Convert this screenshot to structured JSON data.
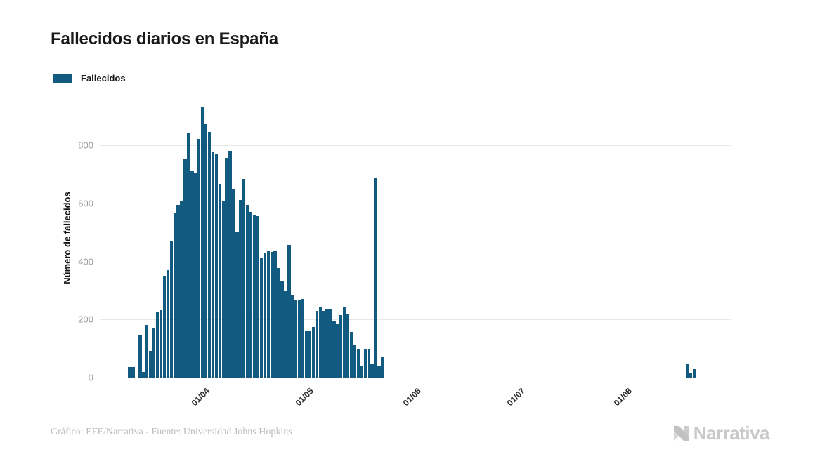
{
  "title": "Fallecidos diarios en España",
  "legend": {
    "label": "Fallecidos",
    "color": "#135a80"
  },
  "footer": {
    "credit": "Gráfico: EFE/Narrativa - Fuente: Universidad Johns Hopkins"
  },
  "logo": {
    "text": "Narrativa"
  },
  "colors": {
    "bar": "#135a80",
    "grid": "#e8e8e8",
    "axis_line": "#d9d9d9",
    "tick_label": "#9b9b9b",
    "x_tick_label": "#2b2b2b",
    "title": "#191919",
    "footer": "#bdbdbd",
    "logo": "#c9c9c9"
  },
  "chart_data": {
    "type": "bar",
    "title": "Fallecidos diarios en España",
    "xlabel": "",
    "ylabel": "Número de fallecidos",
    "ylim": [
      0,
      962
    ],
    "yticks": [
      0,
      200,
      400,
      600,
      800
    ],
    "grid": true,
    "legend_position": "top-left",
    "x_domain": [
      "2020-03-04",
      "2020-09-02"
    ],
    "xticks": [
      {
        "date": "2020-04-01",
        "label": "01/04"
      },
      {
        "date": "2020-05-01",
        "label": "01/05"
      },
      {
        "date": "2020-06-01",
        "label": "01/06"
      },
      {
        "date": "2020-07-01",
        "label": "01/07"
      },
      {
        "date": "2020-08-01",
        "label": "01/08"
      }
    ],
    "series": [
      {
        "name": "Fallecidos",
        "color": "#135a80",
        "dates": [
          "2020-03-12",
          "2020-03-13",
          "2020-03-14",
          "2020-03-15",
          "2020-03-16",
          "2020-03-17",
          "2020-03-18",
          "2020-03-19",
          "2020-03-20",
          "2020-03-21",
          "2020-03-22",
          "2020-03-23",
          "2020-03-24",
          "2020-03-25",
          "2020-03-26",
          "2020-03-27",
          "2020-03-28",
          "2020-03-29",
          "2020-03-30",
          "2020-03-31",
          "2020-04-01",
          "2020-04-02",
          "2020-04-03",
          "2020-04-04",
          "2020-04-05",
          "2020-04-06",
          "2020-04-07",
          "2020-04-08",
          "2020-04-09",
          "2020-04-10",
          "2020-04-11",
          "2020-04-12",
          "2020-04-13",
          "2020-04-14",
          "2020-04-15",
          "2020-04-16",
          "2020-04-17",
          "2020-04-18",
          "2020-04-19",
          "2020-04-20",
          "2020-04-21",
          "2020-04-22",
          "2020-04-23",
          "2020-04-24",
          "2020-04-25",
          "2020-04-26",
          "2020-04-27",
          "2020-04-28",
          "2020-04-29",
          "2020-04-30",
          "2020-05-01",
          "2020-05-02",
          "2020-05-03",
          "2020-05-04",
          "2020-05-05",
          "2020-05-06",
          "2020-05-07",
          "2020-05-08",
          "2020-05-09",
          "2020-05-10",
          "2020-05-11",
          "2020-05-12",
          "2020-05-13",
          "2020-05-14",
          "2020-05-15",
          "2020-05-16",
          "2020-05-17",
          "2020-05-18",
          "2020-05-19",
          "2020-05-20",
          "2020-05-21",
          "2020-05-22",
          "2020-05-23",
          "2020-05-24",
          "2020-08-20",
          "2020-08-21",
          "2020-08-22"
        ],
        "values": [
          37,
          37,
          0,
          148,
          19,
          181,
          92,
          172,
          225,
          232,
          350,
          370,
          470,
          567,
          595,
          610,
          752,
          841,
          712,
          704,
          821,
          930,
          873,
          845,
          777,
          768,
          668,
          608,
          756,
          780,
          651,
          503,
          611,
          683,
          595,
          571,
          559,
          555,
          413,
          430,
          435,
          433,
          436,
          377,
          330,
          300,
          458,
          285,
          269,
          265,
          270,
          163,
          163,
          175,
          229,
          244,
          230,
          237,
          237,
          195,
          185,
          215,
          243,
          218,
          156,
          112,
          97,
          42,
          99,
          97,
          45,
          688,
          42,
          73,
          46,
          18,
          30
        ]
      }
    ]
  }
}
